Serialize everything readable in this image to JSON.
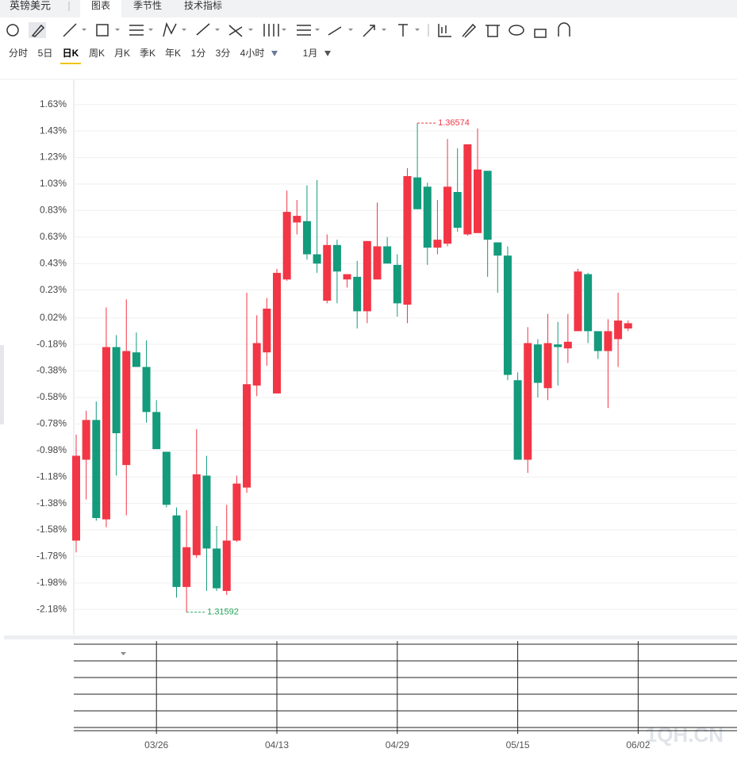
{
  "header": {
    "title": "英镑美元",
    "tabs": [
      "图表",
      "季节性",
      "技术指标"
    ]
  },
  "periods": {
    "items": [
      "分时",
      "5日",
      "日K",
      "周K",
      "月K",
      "季K",
      "年K",
      "1分",
      "3分",
      "4小时"
    ],
    "active": 2,
    "range": "1月"
  },
  "watermark": "1QH.CN",
  "chart_data": {
    "type": "candlestick",
    "categories": [
      null,
      null,
      null,
      null,
      null,
      null,
      null,
      null,
      "03/26",
      null,
      null,
      null,
      null,
      null,
      null,
      null,
      null,
      null,
      null,
      null,
      "04/13",
      null,
      null,
      null,
      null,
      null,
      null,
      null,
      null,
      null,
      null,
      null,
      "04/29",
      null,
      null,
      null,
      null,
      null,
      null,
      null,
      null,
      null,
      null,
      null,
      "05/15",
      null,
      null,
      null,
      null,
      null,
      null,
      null,
      null,
      null,
      null,
      null,
      "06/02"
    ],
    "open": [
      -1.66,
      -1.05,
      -0.75,
      -1.5,
      -0.2,
      -1.09,
      -0.24,
      -0.35,
      -0.69,
      -0.99,
      -1.47,
      -2.01,
      -1.77,
      -1.17,
      -1.72,
      -2.04,
      -1.66,
      -1.26,
      -0.49,
      -0.24,
      -0.55,
      0.31,
      0.74,
      0.75,
      0.5,
      0.15,
      0.57,
      0.31,
      0.33,
      0.07,
      0.31,
      0.56,
      0.42,
      0.12,
      1.08,
      1.01,
      0.55,
      0.58,
      0.97,
      0.65,
      0.66,
      1.13,
      0.59,
      0.49,
      -0.45,
      -1.05,
      -0.18,
      -0.51,
      -0.18,
      -0.21,
      -0.08,
      0.35,
      -0.08,
      -0.23,
      -0.14,
      -0.06,
      null
    ],
    "high": [
      -0.86,
      -0.68,
      -0.61,
      0.1,
      -0.11,
      0.16,
      -0.09,
      -0.15,
      -0.6,
      -0.99,
      -1.41,
      -1.43,
      -0.82,
      -1.02,
      -1.55,
      -1.39,
      -1.17,
      0.21,
      0.04,
      0.17,
      0.39,
      0.98,
      0.91,
      1.02,
      1.06,
      0.65,
      0.61,
      0.35,
      0.45,
      0.6,
      0.89,
      0.63,
      0.5,
      1.15,
      1.49,
      1.04,
      0.91,
      1.37,
      1.3,
      1.33,
      1.45,
      1.13,
      0.59,
      0.56,
      -0.39,
      -0.05,
      -0.14,
      0.05,
      -0.01,
      0.05,
      0.39,
      0.36,
      -0.08,
      0.01,
      0.21,
      0.0,
      null
    ],
    "low": [
      -1.75,
      -1.35,
      -1.51,
      -1.56,
      -1.17,
      -1.47,
      -0.35,
      -0.77,
      -0.97,
      -1.41,
      -2.09,
      -2.2,
      -1.79,
      -2.04,
      -2.04,
      -2.07,
      -1.67,
      -1.3,
      -0.57,
      -0.34,
      -0.55,
      0.3,
      0.65,
      0.46,
      0.36,
      0.13,
      0.13,
      0.25,
      -0.06,
      -0.02,
      0.31,
      0.43,
      0.03,
      -0.02,
      0.84,
      0.42,
      0.5,
      0.56,
      0.67,
      0.64,
      0.66,
      0.33,
      0.21,
      -0.45,
      -1.05,
      -1.15,
      -0.58,
      -0.6,
      -0.49,
      -0.32,
      -0.08,
      -0.17,
      -0.29,
      -0.66,
      -0.35,
      -0.08,
      null
    ],
    "close": [
      -1.02,
      -0.75,
      -1.49,
      -0.2,
      -0.85,
      -0.23,
      -0.35,
      -0.69,
      -0.97,
      -1.39,
      -2.01,
      -1.71,
      -1.16,
      -1.72,
      -2.02,
      -1.66,
      -1.23,
      -0.48,
      -0.17,
      0.09,
      0.36,
      0.82,
      0.79,
      0.5,
      0.43,
      0.57,
      0.37,
      0.35,
      0.07,
      0.6,
      0.56,
      0.43,
      0.13,
      1.09,
      0.84,
      0.55,
      0.61,
      1.01,
      0.7,
      1.33,
      1.14,
      0.61,
      0.49,
      -0.41,
      -1.05,
      -0.17,
      -0.47,
      -0.17,
      -0.2,
      -0.16,
      0.37,
      -0.08,
      -0.23,
      -0.08,
      0.0,
      -0.02,
      null
    ],
    "up_color": "#f23645",
    "down_color": "#139b7c",
    "annotations": [
      {
        "text": "1.36574",
        "at": "high",
        "color": "#f23645"
      },
      {
        "text": "1.31592",
        "at": "low",
        "color": "#26a65b"
      }
    ],
    "ylim": [
      -2.37,
      1.82
    ],
    "yticks": [
      {
        "value": 1.63,
        "label": "1.63%"
      },
      {
        "value": 1.43,
        "label": "1.43%"
      },
      {
        "value": 1.23,
        "label": "1.23%"
      },
      {
        "value": 1.03,
        "label": "1.03%"
      },
      {
        "value": 0.83,
        "label": "0.83%"
      },
      {
        "value": 0.63,
        "label": "0.63%"
      },
      {
        "value": 0.43,
        "label": "0.43%"
      },
      {
        "value": 0.23,
        "label": "0.23%"
      },
      {
        "value": 0.02,
        "label": "0.02%"
      },
      {
        "value": -0.18,
        "label": "-0.18%"
      },
      {
        "value": -0.38,
        "label": "-0.38%"
      },
      {
        "value": -0.58,
        "label": "-0.58%"
      },
      {
        "value": -0.78,
        "label": "-0.78%"
      },
      {
        "value": -0.98,
        "label": "-0.98%"
      },
      {
        "value": -1.18,
        "label": "-1.18%"
      },
      {
        "value": -1.38,
        "label": "-1.38%"
      },
      {
        "value": -1.58,
        "label": "-1.58%"
      },
      {
        "value": -1.78,
        "label": "-1.78%"
      },
      {
        "value": -1.98,
        "label": "-1.98%"
      },
      {
        "value": -2.18,
        "label": "-2.18%"
      }
    ],
    "grid": true
  }
}
